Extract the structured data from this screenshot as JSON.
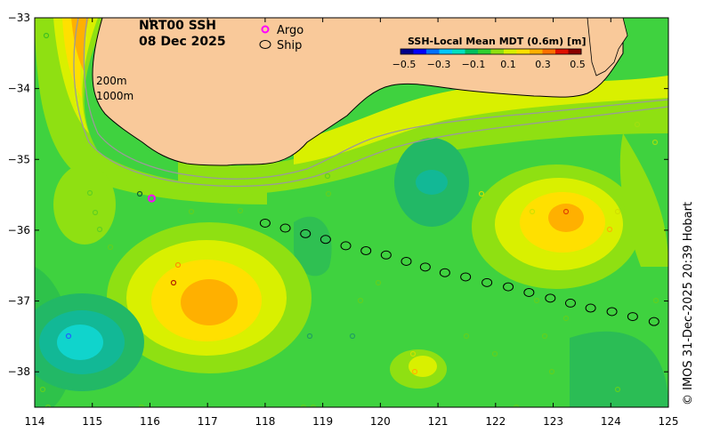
{
  "title_line1": "NRT00 SSH",
  "title_line2": "08 Dec 2025",
  "legend": {
    "argo_label": "Argo",
    "ship_label": "Ship"
  },
  "isobath_labels": [
    "200m",
    "1000m"
  ],
  "colorbar": {
    "title": "SSH-Local Mean MDT (0.6m) [m]",
    "tick_labels": [
      "−0.5",
      "−0.3",
      "−0.1",
      "0.1",
      "0.3",
      "0.5"
    ],
    "min": -0.5,
    "max": 0.5,
    "colors": [
      "#00008a",
      "#0000ff",
      "#0070ff",
      "#00c8ff",
      "#00e0c0",
      "#00c060",
      "#30d030",
      "#90e010",
      "#d8f000",
      "#ffe000",
      "#ffb000",
      "#ff7000",
      "#e01000",
      "#8a0000"
    ]
  },
  "x_ticks": [
    "114",
    "115",
    "116",
    "117",
    "118",
    "119",
    "120",
    "121",
    "122",
    "123",
    "124",
    "125"
  ],
  "y_ticks": [
    "−33",
    "−34",
    "−35",
    "−36",
    "−37",
    "−38"
  ],
  "credit": "© IMOS 31-Dec-2025 20:39 Hobart",
  "colors": {
    "land": "#f9c99a",
    "base_ocean": "#3fd23f",
    "coast": "#000000",
    "isobath": "#9a9a9a"
  },
  "map_data": {
    "lon_range": [
      114,
      125
    ],
    "lat_range": [
      -38.5,
      -33
    ],
    "argo_floats": [
      {
        "lon": 116.03,
        "lat": -35.55
      }
    ],
    "ship_track": [
      [
        118.0,
        -35.9
      ],
      [
        118.35,
        -35.97
      ],
      [
        118.7,
        -36.05
      ],
      [
        119.05,
        -36.13
      ],
      [
        119.4,
        -36.22
      ],
      [
        119.75,
        -36.29
      ],
      [
        120.1,
        -36.35
      ],
      [
        120.45,
        -36.44
      ],
      [
        120.78,
        -36.52
      ],
      [
        121.12,
        -36.6
      ],
      [
        121.48,
        -36.66
      ],
      [
        121.85,
        -36.74
      ],
      [
        122.22,
        -36.8
      ],
      [
        122.58,
        -36.88
      ],
      [
        122.95,
        -36.96
      ],
      [
        123.3,
        -37.03
      ],
      [
        123.65,
        -37.1
      ],
      [
        124.02,
        -37.15
      ],
      [
        124.38,
        -37.22
      ],
      [
        124.75,
        -37.29
      ]
    ],
    "ssh_features": [
      {
        "lon": 116.95,
        "lat": -36.95,
        "rx": 1.25,
        "ry": 0.75,
        "value": 0.28
      },
      {
        "lon": 123.15,
        "lat": -35.95,
        "rx": 1.0,
        "ry": 0.6,
        "value": 0.3
      },
      {
        "lon": 114.85,
        "lat": -37.65,
        "rx": 0.9,
        "ry": 0.55,
        "value": -0.2
      },
      {
        "lon": 121.0,
        "lat": -35.4,
        "rx": 0.55,
        "ry": 0.55,
        "value": -0.15
      },
      {
        "lon": 120.7,
        "lat": -38.0,
        "rx": 0.55,
        "ry": 0.4,
        "value": 0.15
      },
      {
        "lon": 114.6,
        "lat": -33.7,
        "rx": 1.2,
        "ry": 1.0,
        "value": 0.3
      }
    ]
  }
}
